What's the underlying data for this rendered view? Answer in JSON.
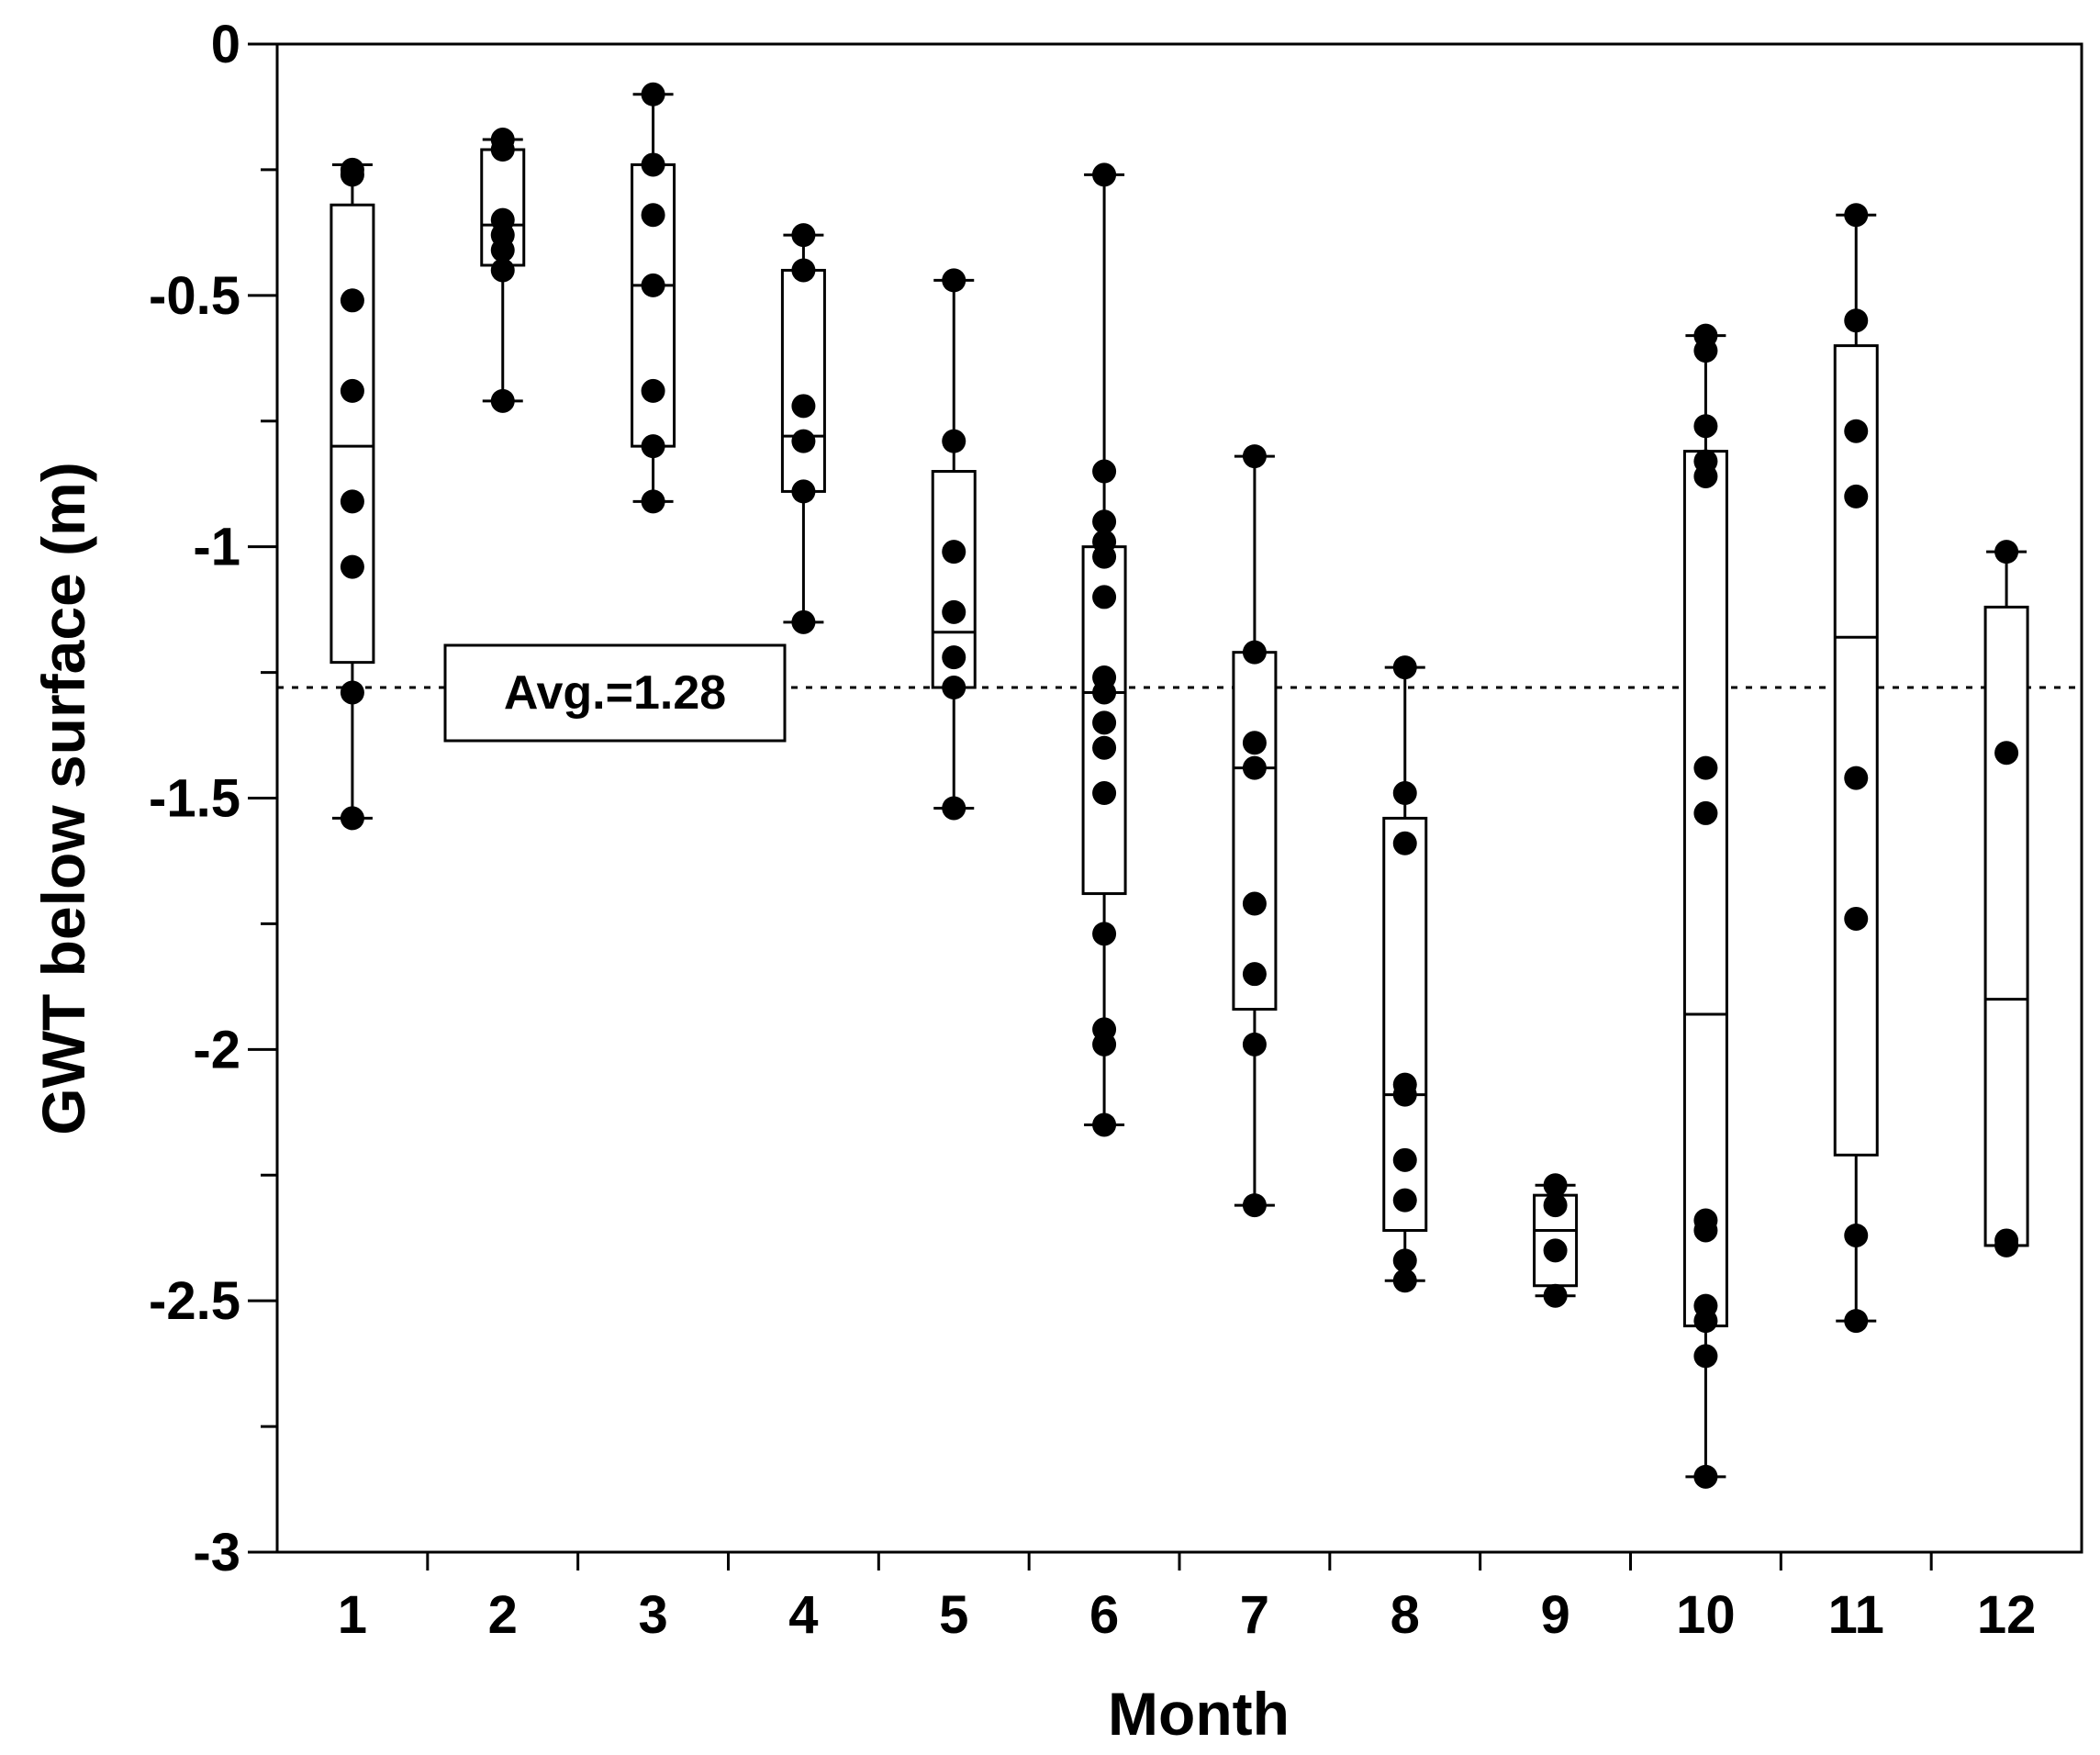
{
  "chart_data": {
    "type": "box",
    "title": "",
    "xlabel": "Month",
    "ylabel": "GWT below surface (m)",
    "ylim": [
      -3,
      0
    ],
    "categories": [
      "1",
      "2",
      "3",
      "4",
      "5",
      "6",
      "7",
      "8",
      "9",
      "10",
      "11",
      "12"
    ],
    "y_ticks": [
      0,
      -0.5,
      -1,
      -1.5,
      -2,
      -2.5,
      -3
    ],
    "y_tick_labels": [
      "0",
      "-0.5",
      "-1",
      "-1.5",
      "-2",
      "-2.5",
      "-3"
    ],
    "reference_line": {
      "value": -1.28,
      "style": "dotted",
      "label": "Avg.=1.28"
    },
    "boxes": [
      {
        "month": "1",
        "whisker_high": -0.24,
        "q3": -0.32,
        "median": -0.8,
        "q1": -1.23,
        "whisker_low": -1.54,
        "points": [
          -0.25,
          -0.26,
          -0.51,
          -0.69,
          -0.91,
          -1.04,
          -1.29,
          -1.54
        ]
      },
      {
        "month": "2",
        "whisker_high": -0.19,
        "q3": -0.21,
        "median": -0.36,
        "q1": -0.44,
        "whisker_low": -0.71,
        "points": [
          -0.19,
          -0.21,
          -0.35,
          -0.38,
          -0.41,
          -0.45,
          -0.71
        ]
      },
      {
        "month": "3",
        "whisker_high": -0.1,
        "q3": -0.24,
        "median": -0.48,
        "q1": -0.8,
        "whisker_low": -0.91,
        "points": [
          -0.1,
          -0.24,
          -0.34,
          -0.48,
          -0.69,
          -0.8,
          -0.91
        ]
      },
      {
        "month": "4",
        "whisker_high": -0.38,
        "q3": -0.45,
        "median": -0.78,
        "q1": -0.89,
        "whisker_low": -1.15,
        "points": [
          -0.38,
          -0.45,
          -0.72,
          -0.79,
          -0.89,
          -1.15
        ]
      },
      {
        "month": "5",
        "whisker_high": -0.47,
        "q3": -0.85,
        "median": -1.17,
        "q1": -1.28,
        "whisker_low": -1.52,
        "points": [
          -0.47,
          -0.79,
          -1.01,
          -1.13,
          -1.22,
          -1.28,
          -1.52
        ]
      },
      {
        "month": "6",
        "whisker_high": -0.26,
        "q3": -1.0,
        "median": -1.29,
        "q1": -1.69,
        "whisker_low": -2.15,
        "points": [
          -0.26,
          -0.85,
          -0.95,
          -0.99,
          -1.02,
          -1.1,
          -1.26,
          -1.29,
          -1.35,
          -1.4,
          -1.49,
          -1.77,
          -1.96,
          -1.99,
          -2.15
        ]
      },
      {
        "month": "7",
        "whisker_high": -0.82,
        "q3": -1.21,
        "median": -1.44,
        "q1": -1.92,
        "whisker_low": -2.31,
        "points": [
          -0.82,
          -1.21,
          -1.39,
          -1.44,
          -1.71,
          -1.85,
          -1.99,
          -2.31
        ]
      },
      {
        "month": "8",
        "whisker_high": -1.24,
        "q3": -1.54,
        "median": -2.09,
        "q1": -2.36,
        "whisker_low": -2.46,
        "points": [
          -1.24,
          -1.49,
          -1.59,
          -2.07,
          -2.09,
          -2.22,
          -2.3,
          -2.42,
          -2.46
        ]
      },
      {
        "month": "9",
        "whisker_high": -2.27,
        "q3": -2.29,
        "median": -2.36,
        "q1": -2.47,
        "whisker_low": -2.49,
        "points": [
          -2.27,
          -2.31,
          -2.4,
          -2.49
        ]
      },
      {
        "month": "10",
        "whisker_high": -0.58,
        "q3": -0.81,
        "median": -1.93,
        "q1": -2.55,
        "whisker_low": -2.85,
        "points": [
          -0.58,
          -0.61,
          -0.76,
          -0.83,
          -0.86,
          -1.44,
          -1.53,
          -2.34,
          -2.36,
          -2.51,
          -2.54,
          -2.61,
          -2.85
        ]
      },
      {
        "month": "11",
        "whisker_high": -0.34,
        "q3": -0.6,
        "median": -1.18,
        "q1": -2.21,
        "whisker_low": -2.54,
        "points": [
          -0.34,
          -0.55,
          -0.77,
          -0.9,
          -1.46,
          -1.74,
          -2.37,
          -2.54
        ]
      },
      {
        "month": "12",
        "whisker_high": -1.01,
        "q3": -1.12,
        "median": -1.9,
        "q1": -2.39,
        "whisker_low": -2.39,
        "points": [
          -1.01,
          -1.41,
          -2.38,
          -2.39
        ]
      }
    ]
  }
}
